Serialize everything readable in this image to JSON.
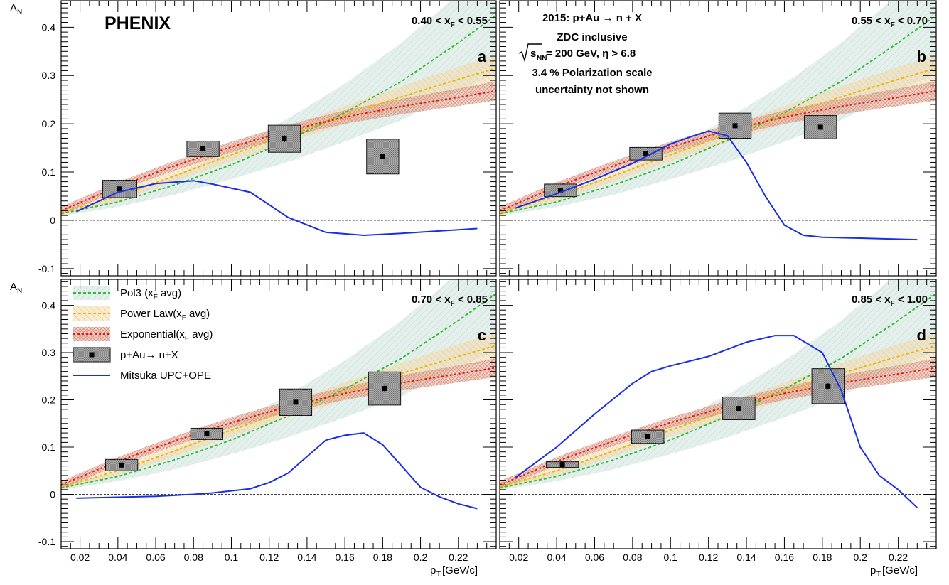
{
  "experiment_label": "PHENIX",
  "y_axis_label": "A",
  "y_axis_sub": "N",
  "x_axis_label": "p",
  "x_axis_sub": "T",
  "x_axis_unit": "[GeV/c]",
  "info_box": {
    "line1": "2015: p+Au → n + X",
    "line2": "ZDC inclusive",
    "line3_sqrt": "s",
    "line3_sub": "NN",
    "line3_rest": " = 200 GeV, η > 6.8",
    "line4": "3.4 % Polarization scale",
    "line5": "uncertainty not shown"
  },
  "legend": [
    {
      "key": "pol3",
      "text": "Pol3 (x",
      "sub": "F",
      "tail": " avg)"
    },
    {
      "key": "power",
      "text": "Power Law(x",
      "sub": "F",
      "tail": " avg)"
    },
    {
      "key": "exp",
      "text": "Exponential(x",
      "sub": "F",
      "tail": " avg)"
    },
    {
      "key": "data",
      "text": "p+Au→ n+X",
      "sub": "",
      "tail": ""
    },
    {
      "key": "theory",
      "text": "Mitsuka UPC+OPE",
      "sub": "",
      "tail": ""
    }
  ],
  "colors": {
    "pol3": "#33bb33",
    "power": "#f2b400",
    "exp": "#ee1111",
    "theory": "#1a2ee6",
    "band_pol3": "#cfe3df",
    "band_power": "#f2ddb0",
    "band_exp": "#e8b8a8",
    "box": "#a9a9a9"
  },
  "chart_data": {
    "type": "scatter",
    "xlim": [
      0.01,
      0.24
    ],
    "ylim": [
      -0.115,
      0.455
    ],
    "x_ticks": [
      "0.02",
      "0.04",
      "0.06",
      "0.08",
      "0.1",
      "0.12",
      "0.14",
      "0.16",
      "0.18",
      "0.2",
      "0.22"
    ],
    "x_tick_values": [
      0.02,
      0.04,
      0.06,
      0.08,
      0.1,
      0.12,
      0.14,
      0.16,
      0.18,
      0.2,
      0.22
    ],
    "y_ticks": [
      "-0.1",
      "0",
      "0.1",
      "0.2",
      "0.3",
      "0.4"
    ],
    "y_tick_values": [
      -0.1,
      0,
      0.1,
      0.2,
      0.3,
      0.4
    ],
    "fits": {
      "pol3": {
        "x": [
          0.01,
          0.04,
          0.07,
          0.1,
          0.13,
          0.16,
          0.19,
          0.22,
          0.24
        ],
        "y": [
          0.014,
          0.038,
          0.073,
          0.115,
          0.166,
          0.223,
          0.288,
          0.368,
          0.425
        ],
        "band_halfwidth": [
          0.005,
          0.01,
          0.02,
          0.03,
          0.045,
          0.06,
          0.08,
          0.1,
          0.12
        ]
      },
      "power": {
        "x": [
          0.01,
          0.04,
          0.07,
          0.1,
          0.13,
          0.16,
          0.19,
          0.22,
          0.24
        ],
        "y": [
          0.016,
          0.05,
          0.092,
          0.136,
          0.178,
          0.218,
          0.256,
          0.292,
          0.315
        ],
        "band_halfwidth": [
          0.006,
          0.01,
          0.012,
          0.014,
          0.016,
          0.019,
          0.022,
          0.026,
          0.028
        ]
      },
      "exp": {
        "x": [
          0.01,
          0.04,
          0.07,
          0.1,
          0.13,
          0.16,
          0.19,
          0.22,
          0.24
        ],
        "y": [
          0.02,
          0.07,
          0.113,
          0.152,
          0.186,
          0.214,
          0.236,
          0.255,
          0.268
        ],
        "band_halfwidth": [
          0.008,
          0.009,
          0.01,
          0.011,
          0.012,
          0.014,
          0.016,
          0.018,
          0.02
        ]
      }
    },
    "panels": [
      {
        "label": "a",
        "xf_lo": "0.40",
        "xf_hi": "0.55",
        "points": [
          {
            "x": 0.041,
            "y": 0.065,
            "stat": 0.005,
            "sx": 0.009,
            "sy": 0.018
          },
          {
            "x": 0.085,
            "y": 0.148,
            "stat": 0.005,
            "sx": 0.0085,
            "sy": 0.016
          },
          {
            "x": 0.128,
            "y": 0.169,
            "stat": 0.007,
            "sx": 0.0085,
            "sy": 0.028
          },
          {
            "x": 0.18,
            "y": 0.132,
            "stat": 0.005,
            "sx": 0.0085,
            "sy": 0.036
          }
        ],
        "theory": {
          "x": [
            0.018,
            0.04,
            0.06,
            0.08,
            0.09,
            0.11,
            0.13,
            0.15,
            0.17,
            0.19,
            0.21,
            0.23
          ],
          "y": [
            0.018,
            0.058,
            0.076,
            0.082,
            0.075,
            0.058,
            0.006,
            -0.025,
            -0.031,
            -0.027,
            -0.022,
            -0.017
          ]
        }
      },
      {
        "label": "b",
        "xf_lo": "0.55",
        "xf_hi": "0.70",
        "points": [
          {
            "x": 0.042,
            "y": 0.062,
            "stat": 0.004,
            "sx": 0.0085,
            "sy": 0.013
          },
          {
            "x": 0.087,
            "y": 0.138,
            "stat": 0.004,
            "sx": 0.0085,
            "sy": 0.013
          },
          {
            "x": 0.134,
            "y": 0.196,
            "stat": 0.005,
            "sx": 0.0085,
            "sy": 0.026
          },
          {
            "x": 0.179,
            "y": 0.193,
            "stat": 0.005,
            "sx": 0.0085,
            "sy": 0.024
          }
        ],
        "theory": {
          "x": [
            0.018,
            0.04,
            0.06,
            0.08,
            0.1,
            0.11,
            0.12,
            0.13,
            0.14,
            0.15,
            0.16,
            0.17,
            0.18,
            0.2,
            0.23
          ],
          "y": [
            0.025,
            0.055,
            0.085,
            0.118,
            0.158,
            0.172,
            0.185,
            0.175,
            0.12,
            0.05,
            -0.01,
            -0.031,
            -0.035,
            -0.037,
            -0.04
          ]
        }
      },
      {
        "label": "c",
        "xf_lo": "0.70",
        "xf_hi": "0.85",
        "points": [
          {
            "x": 0.042,
            "y": 0.062,
            "stat": 0.004,
            "sx": 0.0085,
            "sy": 0.012
          },
          {
            "x": 0.087,
            "y": 0.128,
            "stat": 0.004,
            "sx": 0.0085,
            "sy": 0.012
          },
          {
            "x": 0.134,
            "y": 0.195,
            "stat": 0.005,
            "sx": 0.0085,
            "sy": 0.028
          },
          {
            "x": 0.181,
            "y": 0.224,
            "stat": 0.006,
            "sx": 0.0085,
            "sy": 0.035
          }
        ],
        "theory": {
          "x": [
            0.018,
            0.04,
            0.06,
            0.08,
            0.09,
            0.11,
            0.12,
            0.13,
            0.14,
            0.15,
            0.16,
            0.17,
            0.18,
            0.19,
            0.2,
            0.21,
            0.22,
            0.23
          ],
          "y": [
            -0.008,
            -0.006,
            -0.004,
            0.0,
            0.003,
            0.012,
            0.025,
            0.045,
            0.08,
            0.115,
            0.125,
            0.13,
            0.105,
            0.06,
            0.015,
            -0.005,
            -0.02,
            -0.03
          ]
        }
      },
      {
        "label": "d",
        "xf_lo": "0.85",
        "xf_hi": "1.00",
        "points": [
          {
            "x": 0.043,
            "y": 0.063,
            "stat": 0.004,
            "sx": 0.0085,
            "sy": 0.006
          },
          {
            "x": 0.088,
            "y": 0.122,
            "stat": 0.004,
            "sx": 0.0085,
            "sy": 0.014
          },
          {
            "x": 0.136,
            "y": 0.182,
            "stat": 0.005,
            "sx": 0.0085,
            "sy": 0.024
          },
          {
            "x": 0.183,
            "y": 0.229,
            "stat": 0.006,
            "sx": 0.0085,
            "sy": 0.037
          }
        ],
        "theory": {
          "x": [
            0.018,
            0.04,
            0.06,
            0.08,
            0.09,
            0.1,
            0.12,
            0.14,
            0.155,
            0.165,
            0.18,
            0.19,
            0.2,
            0.21,
            0.22,
            0.23
          ],
          "y": [
            0.035,
            0.1,
            0.17,
            0.235,
            0.26,
            0.272,
            0.292,
            0.322,
            0.336,
            0.336,
            0.3,
            0.22,
            0.1,
            0.04,
            0.01,
            -0.028
          ]
        }
      }
    ]
  }
}
